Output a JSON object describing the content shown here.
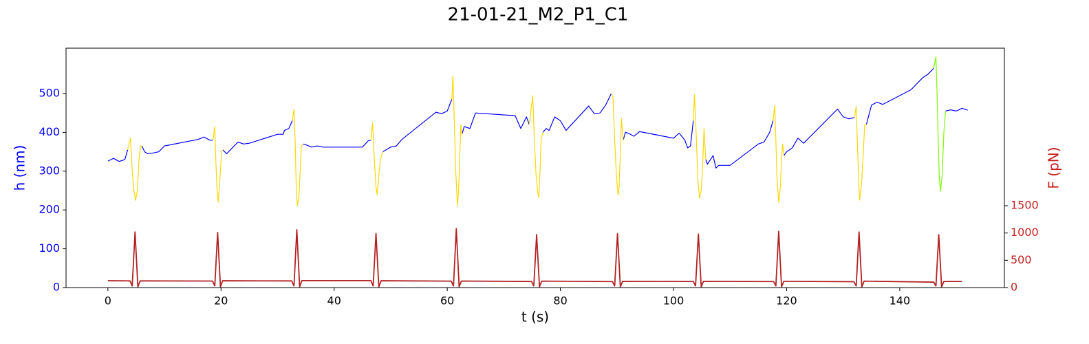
{
  "chart_data": {
    "type": "line",
    "title": "21-01-21_M2_P1_C1",
    "xlabel": "t (s)",
    "ylabel": "h (nm)",
    "y2label": "F (pN)",
    "ycolor": "#0000ff",
    "y2color": "#c41e1e",
    "xlim": [
      -7.4,
      158.5
    ],
    "xticks": [
      0,
      20,
      40,
      60,
      80,
      100,
      120,
      140
    ],
    "ylim": [
      0,
      617
    ],
    "yticks": [
      0,
      100,
      200,
      300,
      400,
      500
    ],
    "y2lim": [
      0,
      4387
    ],
    "y2ticks": [
      0,
      500,
      1000,
      1500
    ],
    "series": [
      {
        "color": "#0000ff",
        "x": [
          0,
          1,
          2,
          3,
          3.5,
          null,
          6,
          6.5,
          7,
          8,
          9,
          10,
          16,
          17,
          18,
          18.6,
          null,
          20.3,
          21,
          22,
          23,
          24,
          25,
          30,
          31,
          31.2,
          32,
          32.6,
          null,
          34.5,
          35,
          36,
          37,
          38,
          45,
          46,
          46.5,
          null,
          48.6,
          50,
          51,
          52,
          58,
          59,
          60,
          60.8,
          null,
          62.6,
          63,
          64,
          65,
          72,
          73,
          74,
          74.5,
          null,
          76.9,
          77.5,
          78,
          79,
          80,
          81,
          85,
          86,
          87,
          88,
          89,
          null,
          91.1,
          91.5,
          92,
          93,
          94,
          100,
          101,
          102,
          102.5,
          103,
          103.5,
          null,
          105.7,
          106,
          107,
          107.5,
          108,
          110,
          115,
          116,
          117,
          117.6,
          null,
          119.5,
          120,
          121,
          122,
          123,
          129,
          130,
          131,
          132,
          null,
          134.1,
          135,
          136,
          137,
          142,
          144,
          145,
          146,
          null,
          148.1,
          149,
          150,
          151,
          152
        ],
        "values": [
          326,
          333,
          325,
          330,
          355,
          null,
          365,
          350,
          345,
          347,
          350,
          365,
          382,
          388,
          380,
          380,
          null,
          355,
          345,
          360,
          375,
          370,
          372,
          395,
          395,
          405,
          410,
          430,
          null,
          370,
          368,
          362,
          365,
          362,
          362,
          378,
          380,
          null,
          350,
          362,
          365,
          382,
          452,
          448,
          455,
          485,
          null,
          395,
          415,
          410,
          450,
          443,
          410,
          440,
          420,
          null,
          400,
          410,
          405,
          440,
          430,
          405,
          468,
          448,
          450,
          470,
          500,
          null,
          380,
          400,
          398,
          390,
          402,
          385,
          398,
          380,
          360,
          365,
          430,
          null,
          330,
          318,
          340,
          308,
          315,
          315,
          370,
          375,
          400,
          430,
          null,
          340,
          350,
          360,
          385,
          372,
          460,
          440,
          435,
          438,
          null,
          420,
          470,
          478,
          472,
          510,
          540,
          550,
          565,
          null,
          455,
          458,
          455,
          462,
          457
        ]
      },
      {
        "color": "#ffd700",
        "x": [
          3.5,
          4.0,
          4.3,
          4.6,
          4.9,
          5.2,
          5.5,
          5.8,
          6,
          null,
          18.6,
          18.9,
          19.1,
          19.3,
          19.5,
          19.7,
          19.9,
          20.1,
          20.3,
          null,
          32.6,
          32.9,
          33.1,
          33.3,
          33.5,
          33.8,
          34.0,
          34.2,
          34.5,
          null,
          46.5,
          46.8,
          47.1,
          47.4,
          47.6,
          47.9,
          48.2,
          48.6,
          null,
          60.8,
          61.0,
          61.2,
          61.5,
          61.8,
          62.0,
          62.2,
          62.4,
          62.6,
          null,
          74.5,
          75.1,
          75.4,
          75.7,
          76.0,
          76.2,
          76.4,
          76.6,
          76.9,
          null,
          89,
          89.3,
          89.6,
          89.9,
          90.2,
          90.4,
          90.6,
          90.8,
          91.1,
          null,
          103.5,
          103.7,
          104.0,
          104.3,
          104.6,
          104.9,
          105.2,
          105.4,
          105.7,
          null,
          117.6,
          117.9,
          118.1,
          118.3,
          118.6,
          118.9,
          119.1,
          119.3,
          119.5,
          null,
          132,
          132.3,
          132.5,
          132.7,
          132.9,
          133.2,
          133.5,
          133.8,
          134.1
        ],
        "values": [
          355,
          385,
          300,
          250,
          225,
          250,
          330,
          365,
          365,
          null,
          380,
          415,
          320,
          250,
          220,
          260,
          300,
          350,
          355,
          null,
          430,
          460,
          380,
          260,
          210,
          240,
          300,
          365,
          370,
          null,
          380,
          425,
          330,
          260,
          240,
          290,
          330,
          350,
          null,
          485,
          545,
          450,
          300,
          210,
          250,
          330,
          420,
          395,
          null,
          420,
          495,
          380,
          290,
          245,
          232,
          300,
          380,
          400,
          null,
          500,
          490,
          380,
          290,
          238,
          260,
          350,
          435,
          380,
          null,
          430,
          497,
          400,
          280,
          230,
          250,
          330,
          410,
          330,
          null,
          430,
          470,
          380,
          280,
          220,
          260,
          330,
          370,
          340,
          null,
          438,
          467,
          380,
          290,
          225,
          260,
          330,
          420,
          420
        ]
      },
      {
        "color": "#7cfc00",
        "x": [
          146,
          146.4,
          146.6,
          146.8,
          147.0,
          147.2,
          147.5,
          147.8,
          148.1
        ],
        "values": [
          565,
          595,
          500,
          380,
          280,
          248,
          290,
          400,
          455
        ]
      },
      {
        "color": "#b22222",
        "axis": "y2",
        "x": [
          0,
          3.9,
          4.3,
          4.8,
          5.3,
          5.7,
          18.5,
          18.9,
          19.4,
          19.9,
          20.3,
          32.5,
          32.9,
          33.4,
          33.9,
          34.3,
          46.5,
          46.9,
          47.4,
          47.9,
          48.3,
          60.7,
          61.1,
          61.6,
          62.1,
          62.5,
          74.9,
          75.3,
          75.8,
          76.3,
          76.7,
          89.2,
          89.6,
          90.1,
          90.6,
          91,
          103.5,
          103.9,
          104.4,
          104.9,
          105.3,
          117.7,
          118.1,
          118.6,
          119.1,
          119.5,
          131.9,
          132.3,
          132.8,
          133.3,
          133.7,
          146,
          146.4,
          146.9,
          147.4,
          147.8,
          151
        ],
        "values": [
          125,
          123,
          30,
          1020,
          15,
          122,
          120,
          30,
          1010,
          15,
          125,
          122,
          30,
          1060,
          15,
          128,
          128,
          30,
          990,
          15,
          125,
          118,
          30,
          1080,
          15,
          120,
          112,
          30,
          970,
          15,
          118,
          110,
          30,
          990,
          15,
          115,
          112,
          30,
          980,
          15,
          115,
          110,
          30,
          1030,
          15,
          115,
          108,
          30,
          1020,
          15,
          118,
          100,
          30,
          970,
          15,
          112,
          112
        ]
      }
    ]
  }
}
